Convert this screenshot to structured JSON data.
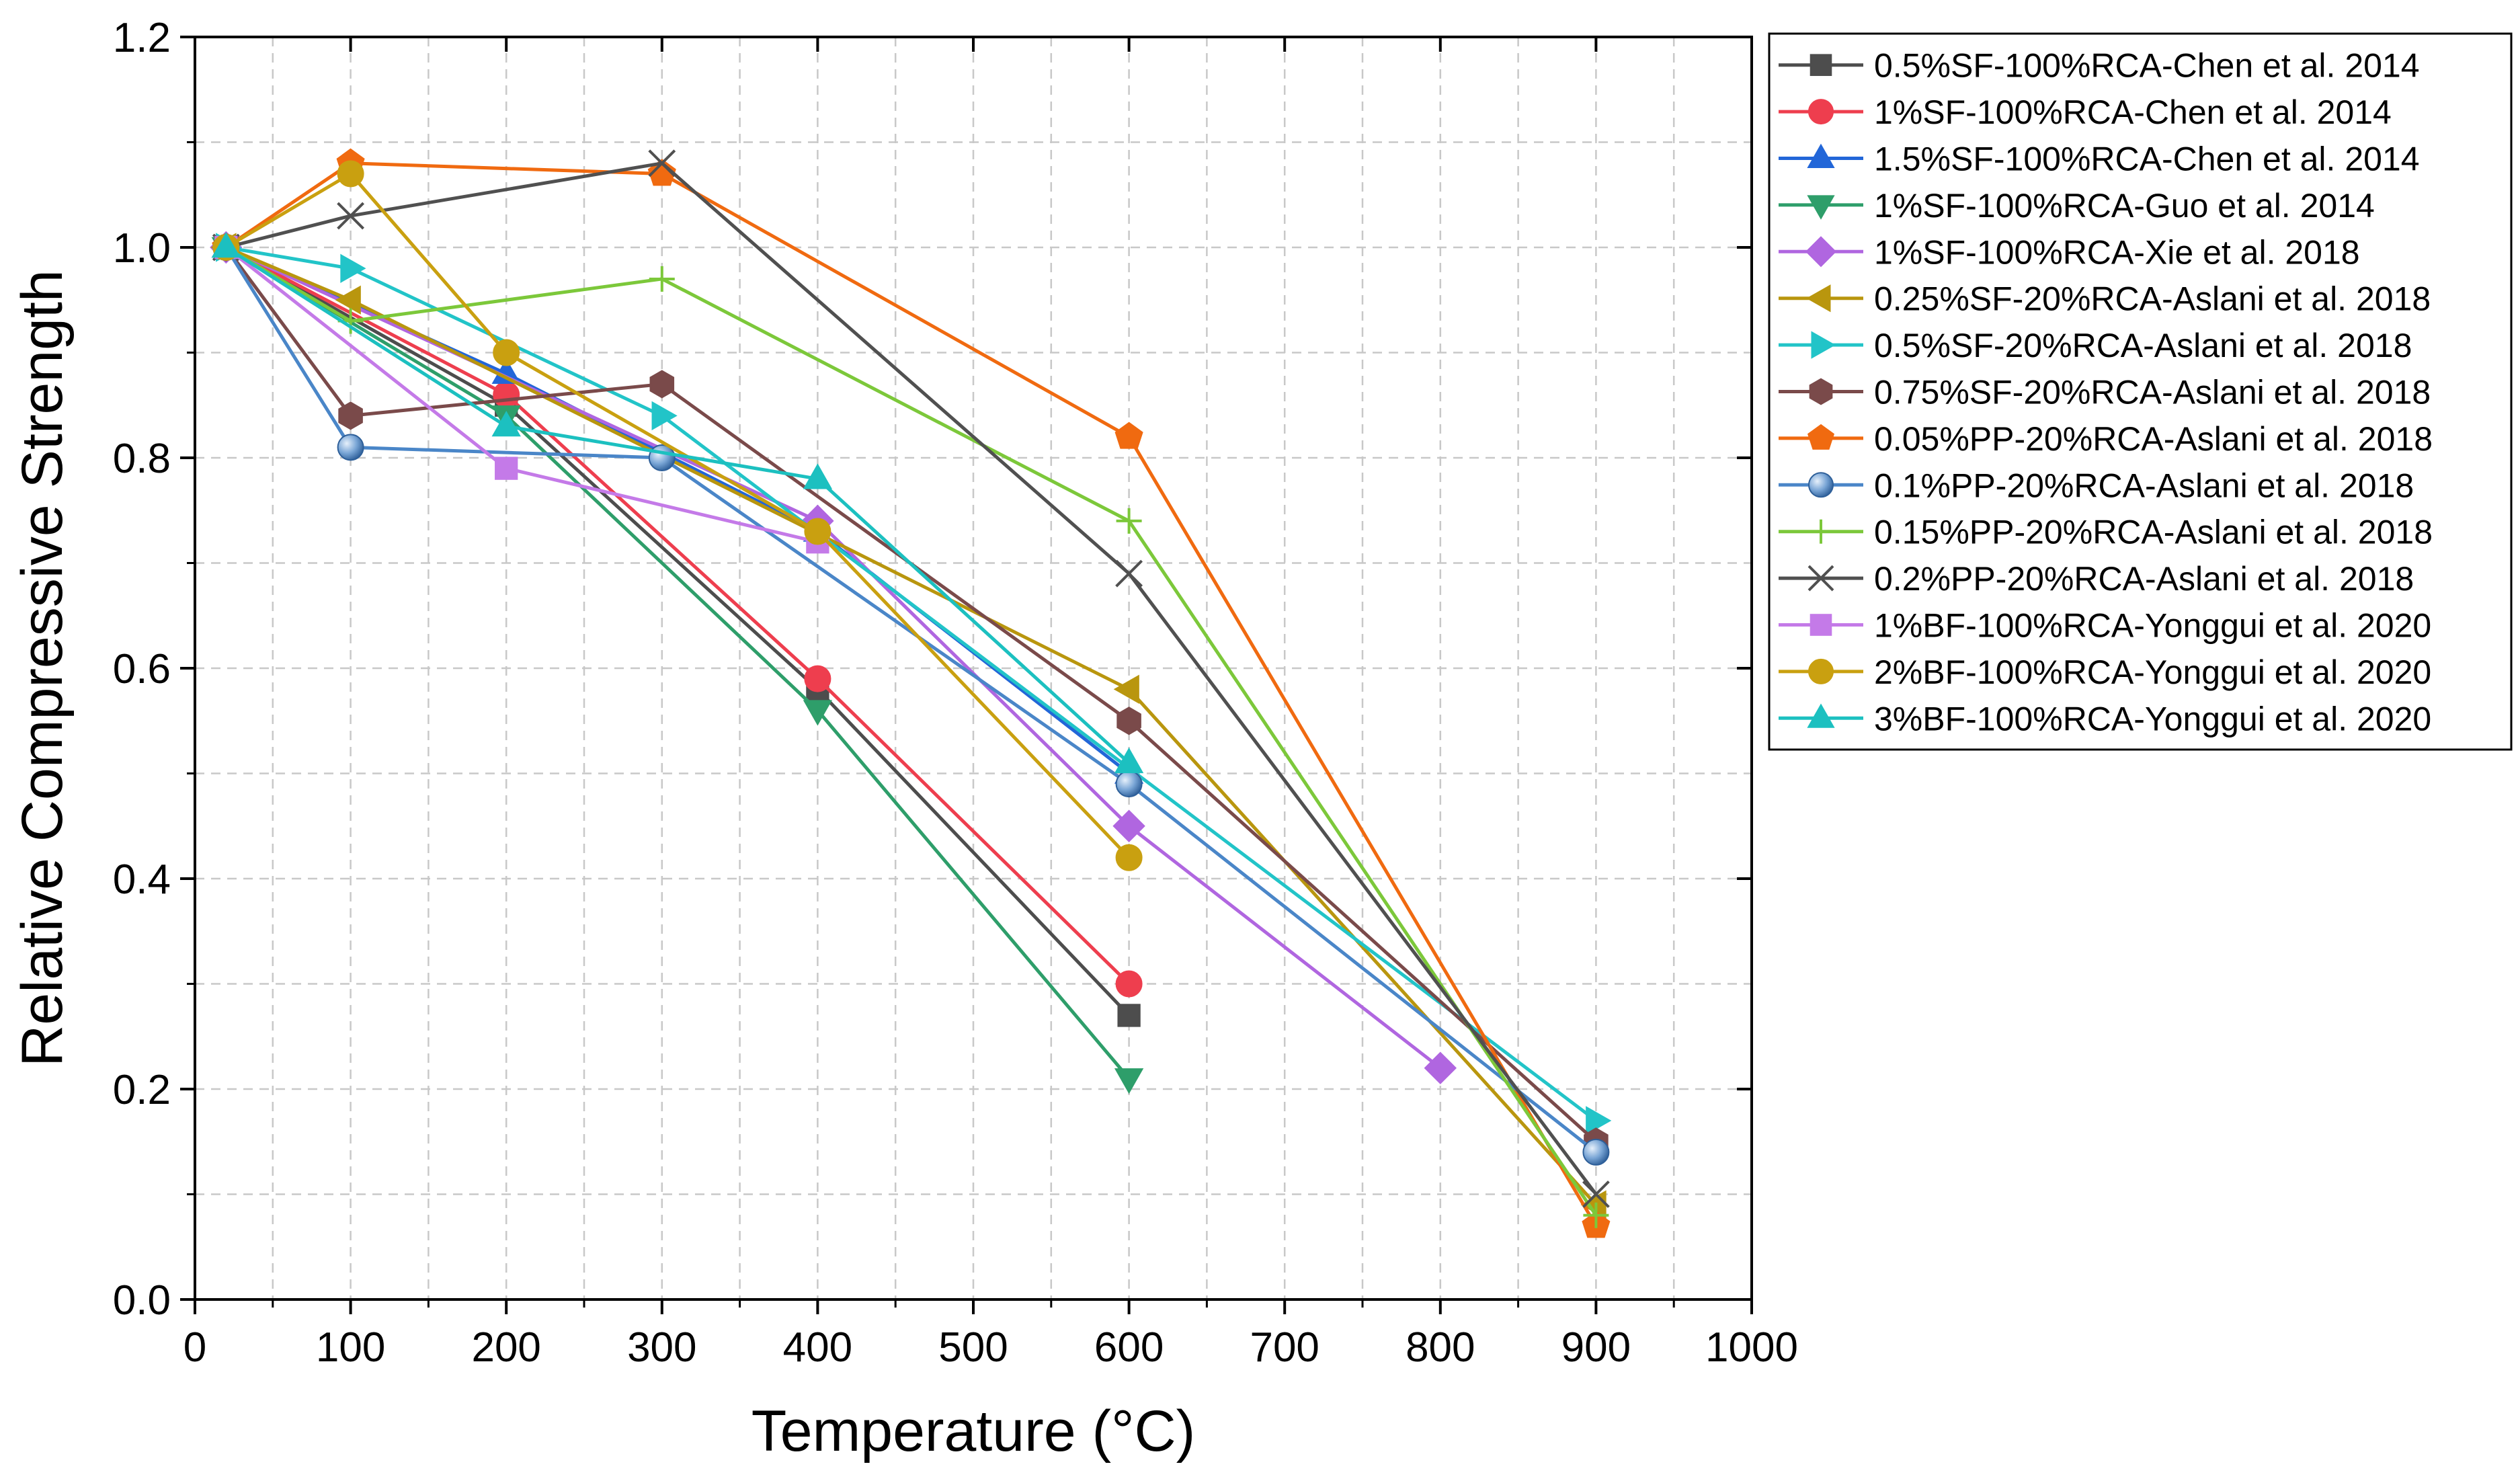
{
  "chart_data": {
    "type": "line",
    "xlabel": "Temperature (°C)",
    "ylabel": "Relative Compressive Strength",
    "xlim": [
      0,
      1000
    ],
    "ylim": [
      0,
      1.2
    ],
    "xticks": [
      0,
      100,
      200,
      300,
      400,
      500,
      600,
      700,
      800,
      900,
      1000
    ],
    "yticks": [
      0.0,
      0.2,
      0.4,
      0.6,
      0.8,
      1.0,
      1.2
    ],
    "xtick_labels": [
      "0",
      "100",
      "200",
      "300",
      "400",
      "500",
      "600",
      "700",
      "800",
      "900",
      "1000"
    ],
    "ytick_labels": [
      "0.0",
      "0.2",
      "0.4",
      "0.6",
      "0.8",
      "1.0",
      "1.2"
    ],
    "grid": true,
    "legend_position": "right-outside-top",
    "series": [
      {
        "name": "0.5%SF-100%RCA-Chen et al. 2014",
        "color": "#4d4d4d",
        "marker": "square",
        "x": [
          20,
          200,
          400,
          600
        ],
        "y": [
          1.0,
          0.85,
          0.58,
          0.27
        ]
      },
      {
        "name": "1%SF-100%RCA-Chen et al. 2014",
        "color": "#ee3e4e",
        "marker": "circle",
        "x": [
          20,
          200,
          400,
          600
        ],
        "y": [
          1.0,
          0.86,
          0.59,
          0.3
        ]
      },
      {
        "name": "1.5%SF-100%RCA-Chen et al. 2014",
        "color": "#2266d8",
        "marker": "triangle-up",
        "x": [
          20,
          200,
          400,
          600
        ],
        "y": [
          1.0,
          0.88,
          0.73,
          0.5
        ]
      },
      {
        "name": "1%SF-100%RCA-Guo et al. 2014",
        "color": "#2e9e6a",
        "marker": "triangle-down",
        "x": [
          20,
          200,
          400,
          600
        ],
        "y": [
          1.0,
          0.84,
          0.56,
          0.21
        ]
      },
      {
        "name": "1%SF-100%RCA-Xie et al. 2018",
        "color": "#b066e0",
        "marker": "diamond",
        "x": [
          20,
          400,
          600,
          800
        ],
        "y": [
          1.0,
          0.74,
          0.45,
          0.22
        ]
      },
      {
        "name": "0.25%SF-20%RCA-Aslani et al. 2018",
        "color": "#b9960e",
        "marker": "triangle-left",
        "x": [
          20,
          100,
          600,
          900
        ],
        "y": [
          1.0,
          0.95,
          0.58,
          0.09
        ]
      },
      {
        "name": "0.5%SF-20%RCA-Aslani et al. 2018",
        "color": "#22c4c8",
        "marker": "triangle-right",
        "x": [
          20,
          100,
          300,
          900
        ],
        "y": [
          1.0,
          0.98,
          0.84,
          0.17
        ]
      },
      {
        "name": "0.75%SF-20%RCA-Aslani et al. 2018",
        "color": "#7a4a4a",
        "marker": "hexagon",
        "x": [
          20,
          100,
          300,
          600,
          900
        ],
        "y": [
          1.0,
          0.84,
          0.87,
          0.55,
          0.15
        ]
      },
      {
        "name": "0.05%PP-20%RCA-Aslani et al. 2018",
        "color": "#f06a10",
        "marker": "pentagon",
        "x": [
          20,
          100,
          300,
          600,
          900
        ],
        "y": [
          1.0,
          1.08,
          1.07,
          0.82,
          0.07
        ]
      },
      {
        "name": "0.1%PP-20%RCA-Aslani et al. 2018",
        "color": "#4a86c8",
        "marker": "ball",
        "x": [
          20,
          100,
          300,
          600,
          900
        ],
        "y": [
          1.0,
          0.81,
          0.8,
          0.49,
          0.14
        ]
      },
      {
        "name": "0.15%PP-20%RCA-Aslani et al. 2018",
        "color": "#7cc83a",
        "marker": "plus",
        "x": [
          20,
          100,
          300,
          600,
          900
        ],
        "y": [
          1.0,
          0.93,
          0.97,
          0.74,
          0.08
        ]
      },
      {
        "name": "0.2%PP-20%RCA-Aslani et al. 2018",
        "color": "#505050",
        "marker": "cross",
        "x": [
          20,
          100,
          300,
          600,
          900
        ],
        "y": [
          1.0,
          1.03,
          1.08,
          0.69,
          0.1
        ]
      },
      {
        "name": "1%BF-100%RCA-Yonggui et al. 2020",
        "color": "#c47ae8",
        "marker": "square",
        "x": [
          20,
          200,
          400
        ],
        "y": [
          1.0,
          0.79,
          0.72
        ]
      },
      {
        "name": "2%BF-100%RCA-Yonggui et al. 2020",
        "color": "#c9a010",
        "marker": "circle",
        "x": [
          20,
          100,
          200,
          400,
          600
        ],
        "y": [
          1.0,
          1.07,
          0.9,
          0.73,
          0.42
        ]
      },
      {
        "name": "3%BF-100%RCA-Yonggui et al. 2020",
        "color": "#1cc0c0",
        "marker": "triangle-up",
        "x": [
          20,
          200,
          400,
          600
        ],
        "y": [
          1.0,
          0.83,
          0.78,
          0.51
        ]
      }
    ]
  }
}
